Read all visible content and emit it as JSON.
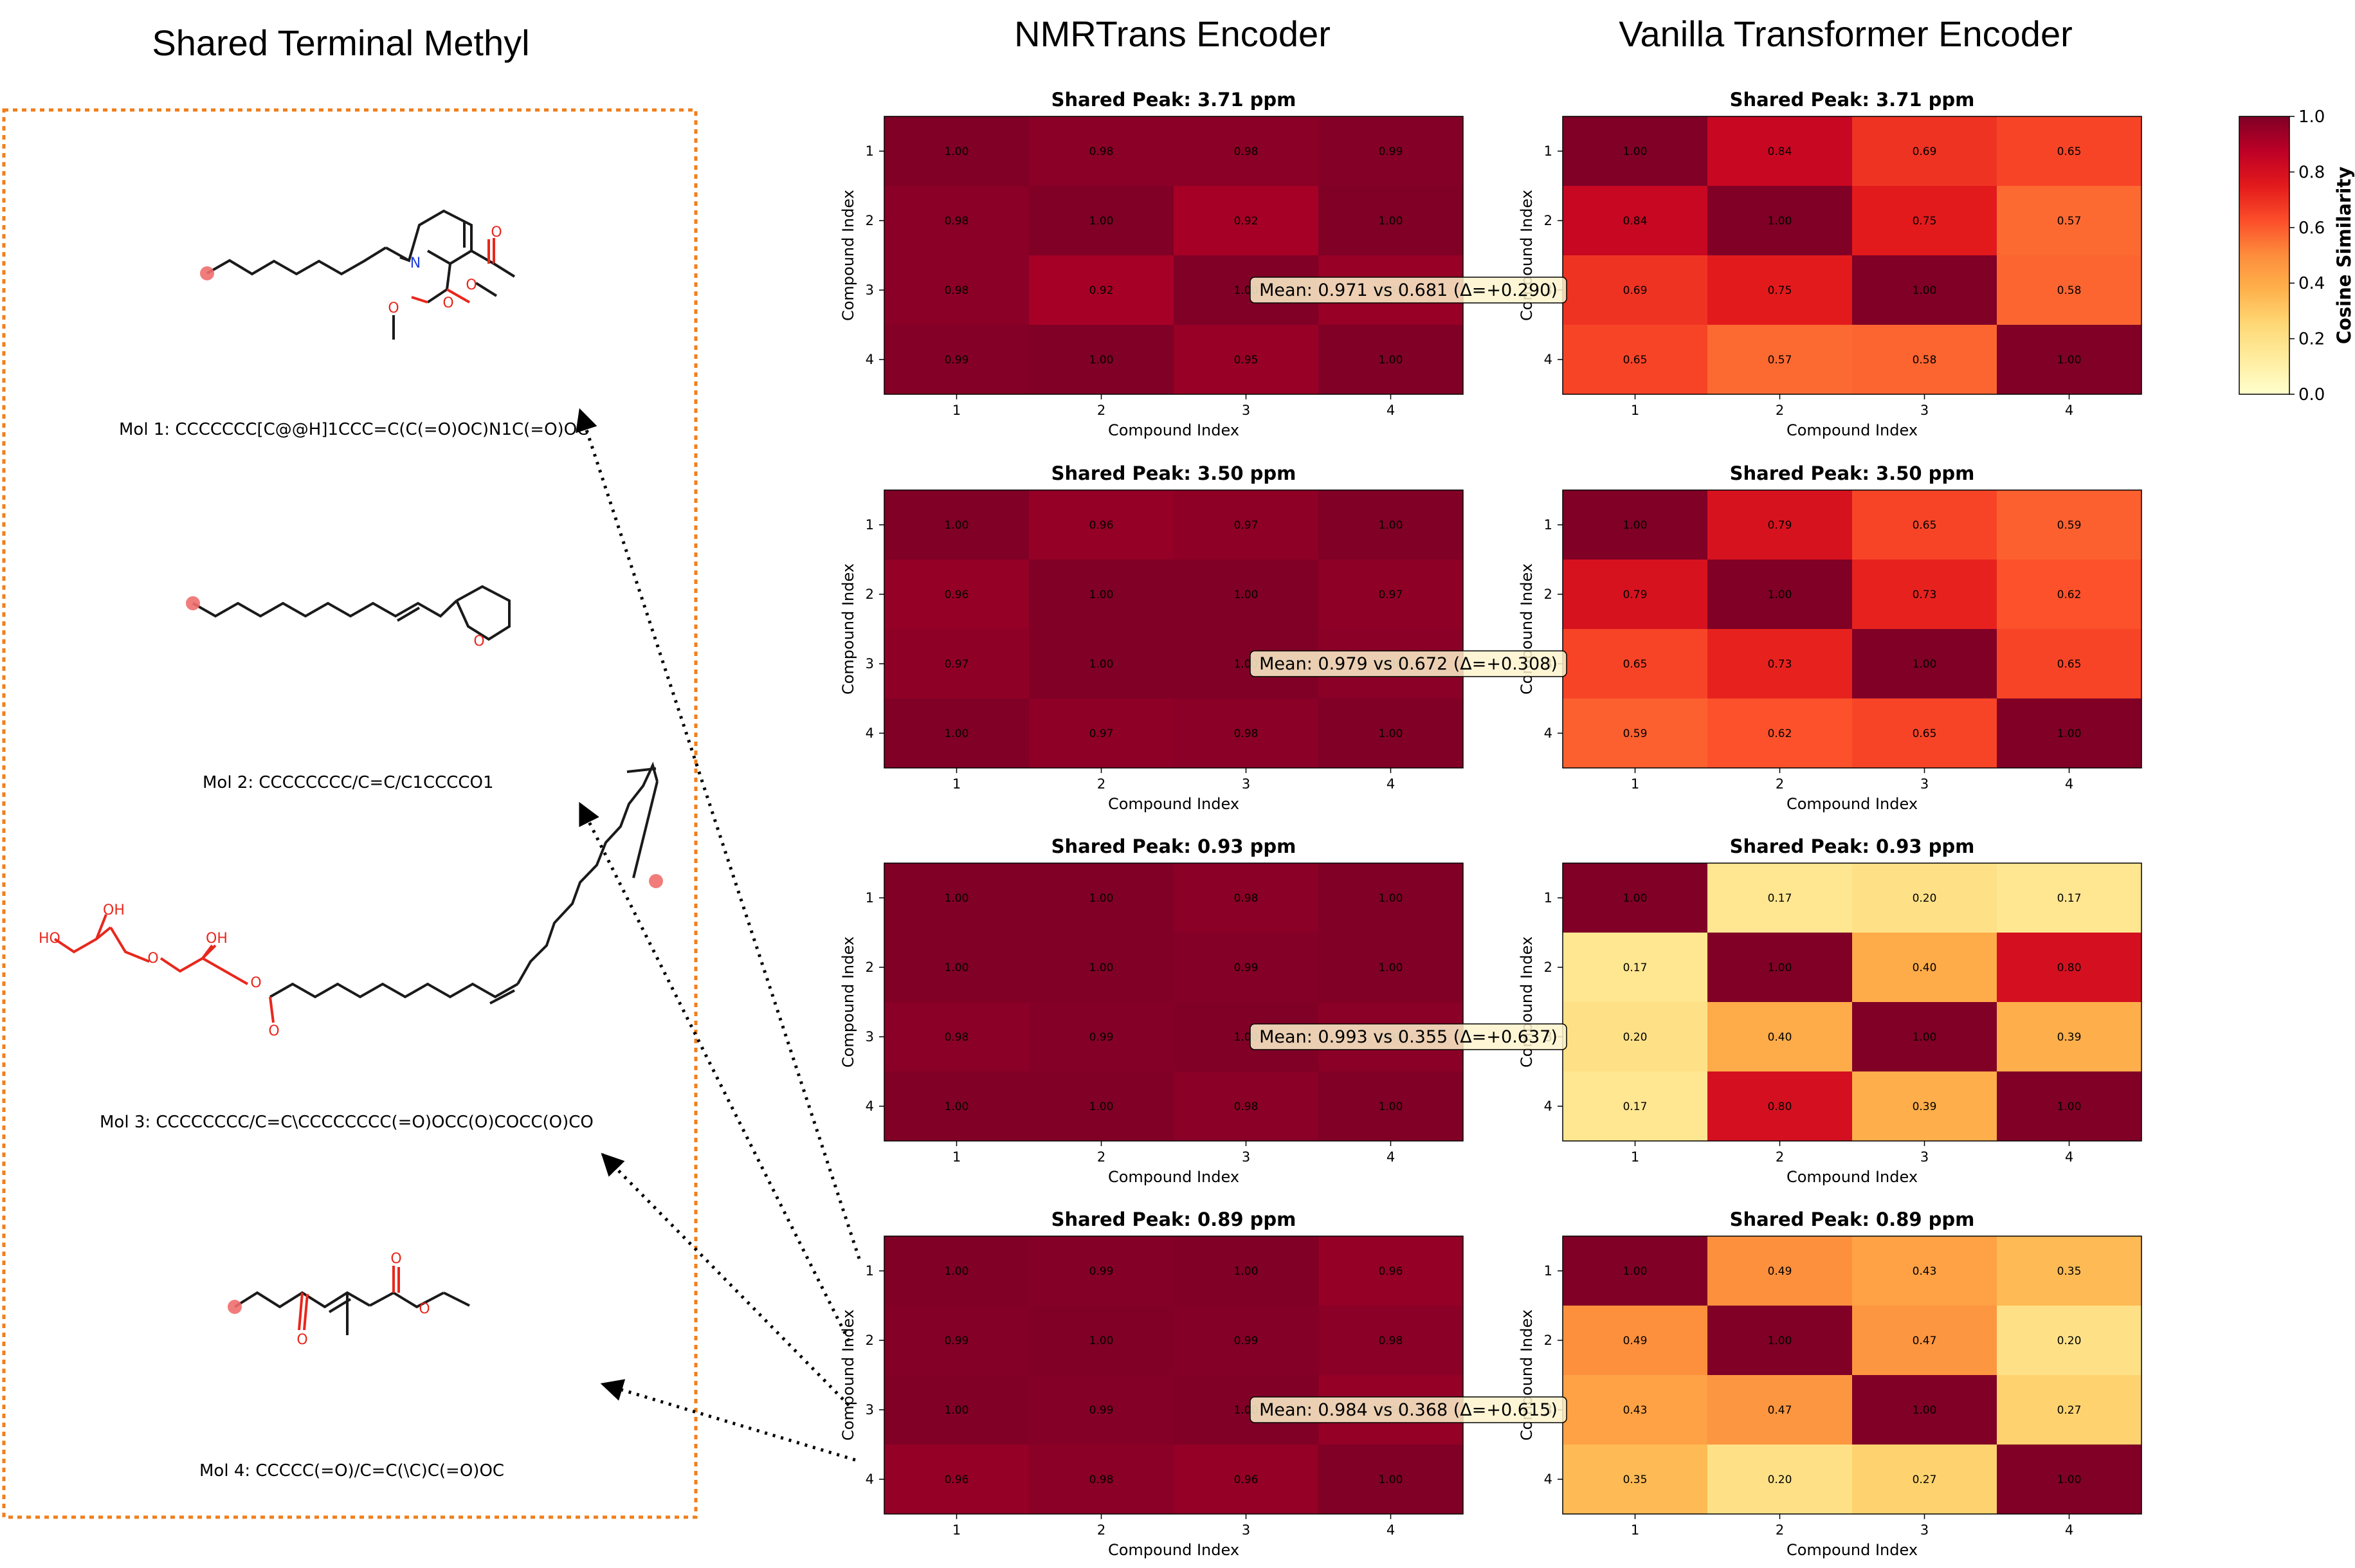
{
  "left_title": "Shared Terminal Methyl",
  "molecules": [
    {
      "label": "Mol 1: CCCCCCC[C@@H]1CCC=C(C(=O)OC)N1C(=O)OC"
    },
    {
      "label": "Mol 2: CCCCCCCC/C=C/C1CCCCO1"
    },
    {
      "label": "Mol 3: CCCCCCCC/C=C\\CCCCCCCC(=O)OCC(O)COCC(O)CO"
    },
    {
      "label": "Mol 4: CCCCC(=O)/C=C(\\C)C(=O)OC"
    }
  ],
  "atoms": {
    "O": "O",
    "N": "N",
    "OH": "OH",
    "HO": "HO"
  },
  "colors": {
    "border": "#f07f1c",
    "atom_O": "#e8271c",
    "atom_N": "#1f3fe0",
    "highlight": "#f06e6e",
    "bond": "#1a1a1a"
  },
  "colorbar": {
    "label": "Cosine Similarity",
    "ticks": [
      "0.0",
      "0.2",
      "0.4",
      "0.6",
      "0.8",
      "1.0"
    ],
    "min": 0,
    "max": 1
  },
  "chart_data": {
    "type": "heatmap",
    "colormap": "YlOrRd",
    "columns": [
      "NMRTrans Encoder",
      "Vanilla Transformer Encoder"
    ],
    "xlabel": "Compound Index",
    "ylabel": "Compound Index",
    "tick_labels": [
      "1",
      "2",
      "3",
      "4"
    ],
    "rows": [
      {
        "title": "Shared Peak: 3.71 ppm",
        "mean_text": "Mean: 0.971 vs 0.681 (Δ=+0.290)",
        "nmrtrans": [
          [
            1.0,
            0.98,
            0.98,
            0.99
          ],
          [
            0.98,
            1.0,
            0.92,
            1.0
          ],
          [
            0.98,
            0.92,
            1.0,
            0.95
          ],
          [
            0.99,
            1.0,
            0.95,
            1.0
          ]
        ],
        "vanilla": [
          [
            1.0,
            0.84,
            0.69,
            0.65
          ],
          [
            0.84,
            1.0,
            0.75,
            0.57
          ],
          [
            0.69,
            0.75,
            1.0,
            0.58
          ],
          [
            0.65,
            0.57,
            0.58,
            1.0
          ]
        ]
      },
      {
        "title": "Shared Peak: 3.50 ppm",
        "mean_text": "Mean: 0.979 vs 0.672 (Δ=+0.308)",
        "nmrtrans": [
          [
            1.0,
            0.96,
            0.97,
            1.0
          ],
          [
            0.96,
            1.0,
            1.0,
            0.97
          ],
          [
            0.97,
            1.0,
            1.0,
            0.98
          ],
          [
            1.0,
            0.97,
            0.98,
            1.0
          ]
        ],
        "vanilla": [
          [
            1.0,
            0.79,
            0.65,
            0.59
          ],
          [
            0.79,
            1.0,
            0.73,
            0.62
          ],
          [
            0.65,
            0.73,
            1.0,
            0.65
          ],
          [
            0.59,
            0.62,
            0.65,
            1.0
          ]
        ]
      },
      {
        "title": "Shared Peak: 0.93 ppm",
        "mean_text": "Mean: 0.993 vs 0.355 (Δ=+0.637)",
        "nmrtrans": [
          [
            1.0,
            1.0,
            0.98,
            1.0
          ],
          [
            1.0,
            1.0,
            0.99,
            1.0
          ],
          [
            0.98,
            0.99,
            1.0,
            0.98
          ],
          [
            1.0,
            1.0,
            0.98,
            1.0
          ]
        ],
        "vanilla": [
          [
            1.0,
            0.17,
            0.2,
            0.17
          ],
          [
            0.17,
            1.0,
            0.4,
            0.8
          ],
          [
            0.2,
            0.4,
            1.0,
            0.39
          ],
          [
            0.17,
            0.8,
            0.39,
            1.0
          ]
        ]
      },
      {
        "title": "Shared Peak: 0.89 ppm",
        "mean_text": "Mean: 0.984 vs 0.368 (Δ=+0.615)",
        "nmrtrans": [
          [
            1.0,
            0.99,
            1.0,
            0.96
          ],
          [
            0.99,
            1.0,
            0.99,
            0.98
          ],
          [
            1.0,
            0.99,
            1.0,
            0.96
          ],
          [
            0.96,
            0.98,
            0.96,
            1.0
          ]
        ],
        "vanilla": [
          [
            1.0,
            0.49,
            0.43,
            0.35
          ],
          [
            0.49,
            1.0,
            0.47,
            0.2
          ],
          [
            0.43,
            0.47,
            1.0,
            0.27
          ],
          [
            0.35,
            0.2,
            0.27,
            1.0
          ]
        ]
      }
    ]
  }
}
